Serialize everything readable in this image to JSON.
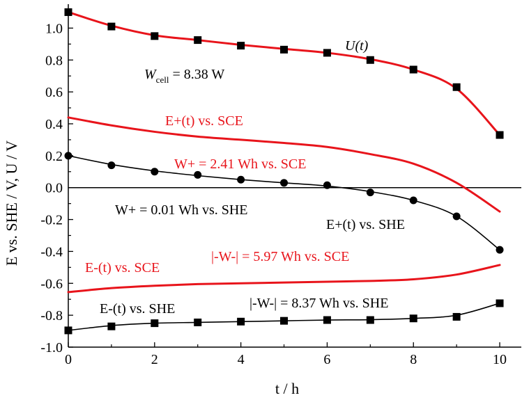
{
  "chart_data": {
    "type": "line",
    "xlabel": "t / h",
    "ylabel": "E vs. SHE / V, U / V",
    "xlim": [
      0,
      10.5
    ],
    "ylim": [
      -1.0,
      1.15
    ],
    "x_ticks": [
      0,
      2,
      4,
      6,
      8,
      10
    ],
    "y_ticks": [
      1.0,
      0.8,
      0.6,
      0.4,
      0.2,
      0.0,
      -0.2,
      -0.4,
      -0.6,
      -0.8,
      -1.0
    ],
    "x_tick_labels": [
      "0",
      "2",
      "4",
      "6",
      "8",
      "10"
    ],
    "y_tick_labels": [
      "1.0",
      "0.8",
      "0.6",
      "0.4",
      "0.2",
      "0.0",
      "-0.2",
      "-0.4",
      "-0.6",
      "-0.8",
      "-1.0"
    ],
    "grid": false,
    "zero_line": true,
    "colors": {
      "red": "#e8141b",
      "black": "#000000"
    },
    "series": [
      {
        "id": "U",
        "color": "#e8141b",
        "marker": "square",
        "x": [
          0,
          1,
          2,
          3,
          4,
          5,
          6,
          7,
          8,
          9,
          10
        ],
        "markers": [
          1.1,
          1.01,
          0.95,
          0.925,
          0.89,
          0.865,
          0.845,
          0.8,
          0.74,
          0.63,
          0.33
        ],
        "fit": [
          1.1,
          1.015,
          0.955,
          0.925,
          0.895,
          0.87,
          0.845,
          0.805,
          0.74,
          0.62,
          0.33
        ]
      },
      {
        "id": "E_plus_SCE",
        "color": "#e8141b",
        "marker": "none",
        "x": [
          0,
          1,
          2,
          3,
          4,
          5,
          6,
          7,
          8,
          9,
          10
        ],
        "fit": [
          0.44,
          0.39,
          0.35,
          0.32,
          0.3,
          0.28,
          0.255,
          0.21,
          0.15,
          0.03,
          -0.15
        ]
      },
      {
        "id": "E_plus_SHE",
        "color": "#000000",
        "marker": "circle",
        "x": [
          0,
          1,
          2,
          3,
          4,
          5,
          6,
          7,
          8,
          9,
          10
        ],
        "markers": [
          0.2,
          0.14,
          0.1,
          0.08,
          0.05,
          0.03,
          0.015,
          -0.03,
          -0.08,
          -0.18,
          -0.39
        ],
        "fit": [
          0.2,
          0.145,
          0.105,
          0.075,
          0.05,
          0.03,
          0.01,
          -0.025,
          -0.08,
          -0.18,
          -0.39
        ]
      },
      {
        "id": "E_minus_SCE",
        "color": "#e8141b",
        "marker": "none",
        "x": [
          0,
          1,
          2,
          3,
          4,
          5,
          6,
          7,
          8,
          9,
          10
        ],
        "fit": [
          -0.655,
          -0.63,
          -0.615,
          -0.605,
          -0.6,
          -0.595,
          -0.59,
          -0.585,
          -0.575,
          -0.545,
          -0.485
        ]
      },
      {
        "id": "E_minus_SHE",
        "color": "#000000",
        "marker": "square",
        "x": [
          0,
          1,
          2,
          3,
          4,
          5,
          6,
          7,
          8,
          9,
          10
        ],
        "markers": [
          -0.895,
          -0.87,
          -0.85,
          -0.845,
          -0.84,
          -0.835,
          -0.83,
          -0.83,
          -0.82,
          -0.81,
          -0.725
        ],
        "fit": [
          -0.895,
          -0.865,
          -0.85,
          -0.845,
          -0.84,
          -0.835,
          -0.83,
          -0.828,
          -0.82,
          -0.8,
          -0.725
        ]
      }
    ],
    "annotations": {
      "U_label": "U(t)",
      "W_cell_prefix": "W",
      "W_cell_sub": "cell",
      "W_cell_value": " = 8.38 W",
      "E_plus_SCE_label": "E+(t)  vs. SCE",
      "W_plus_SCE": "W+ = 2.41 Wh vs. SCE",
      "W_plus_SHE": "W+ = 0.01 Wh vs. SHE",
      "E_plus_SHE_label": "E+(t)  vs. SHE",
      "E_minus_SCE_label": "E-(t)  vs. SCE",
      "W_minus_SCE": "|-W-| = 5.97 Wh vs. SCE",
      "E_minus_SHE_label": "E-(t)  vs. SHE",
      "W_minus_SHE": "|-W-| = 8.37 Wh vs. SHE"
    }
  }
}
